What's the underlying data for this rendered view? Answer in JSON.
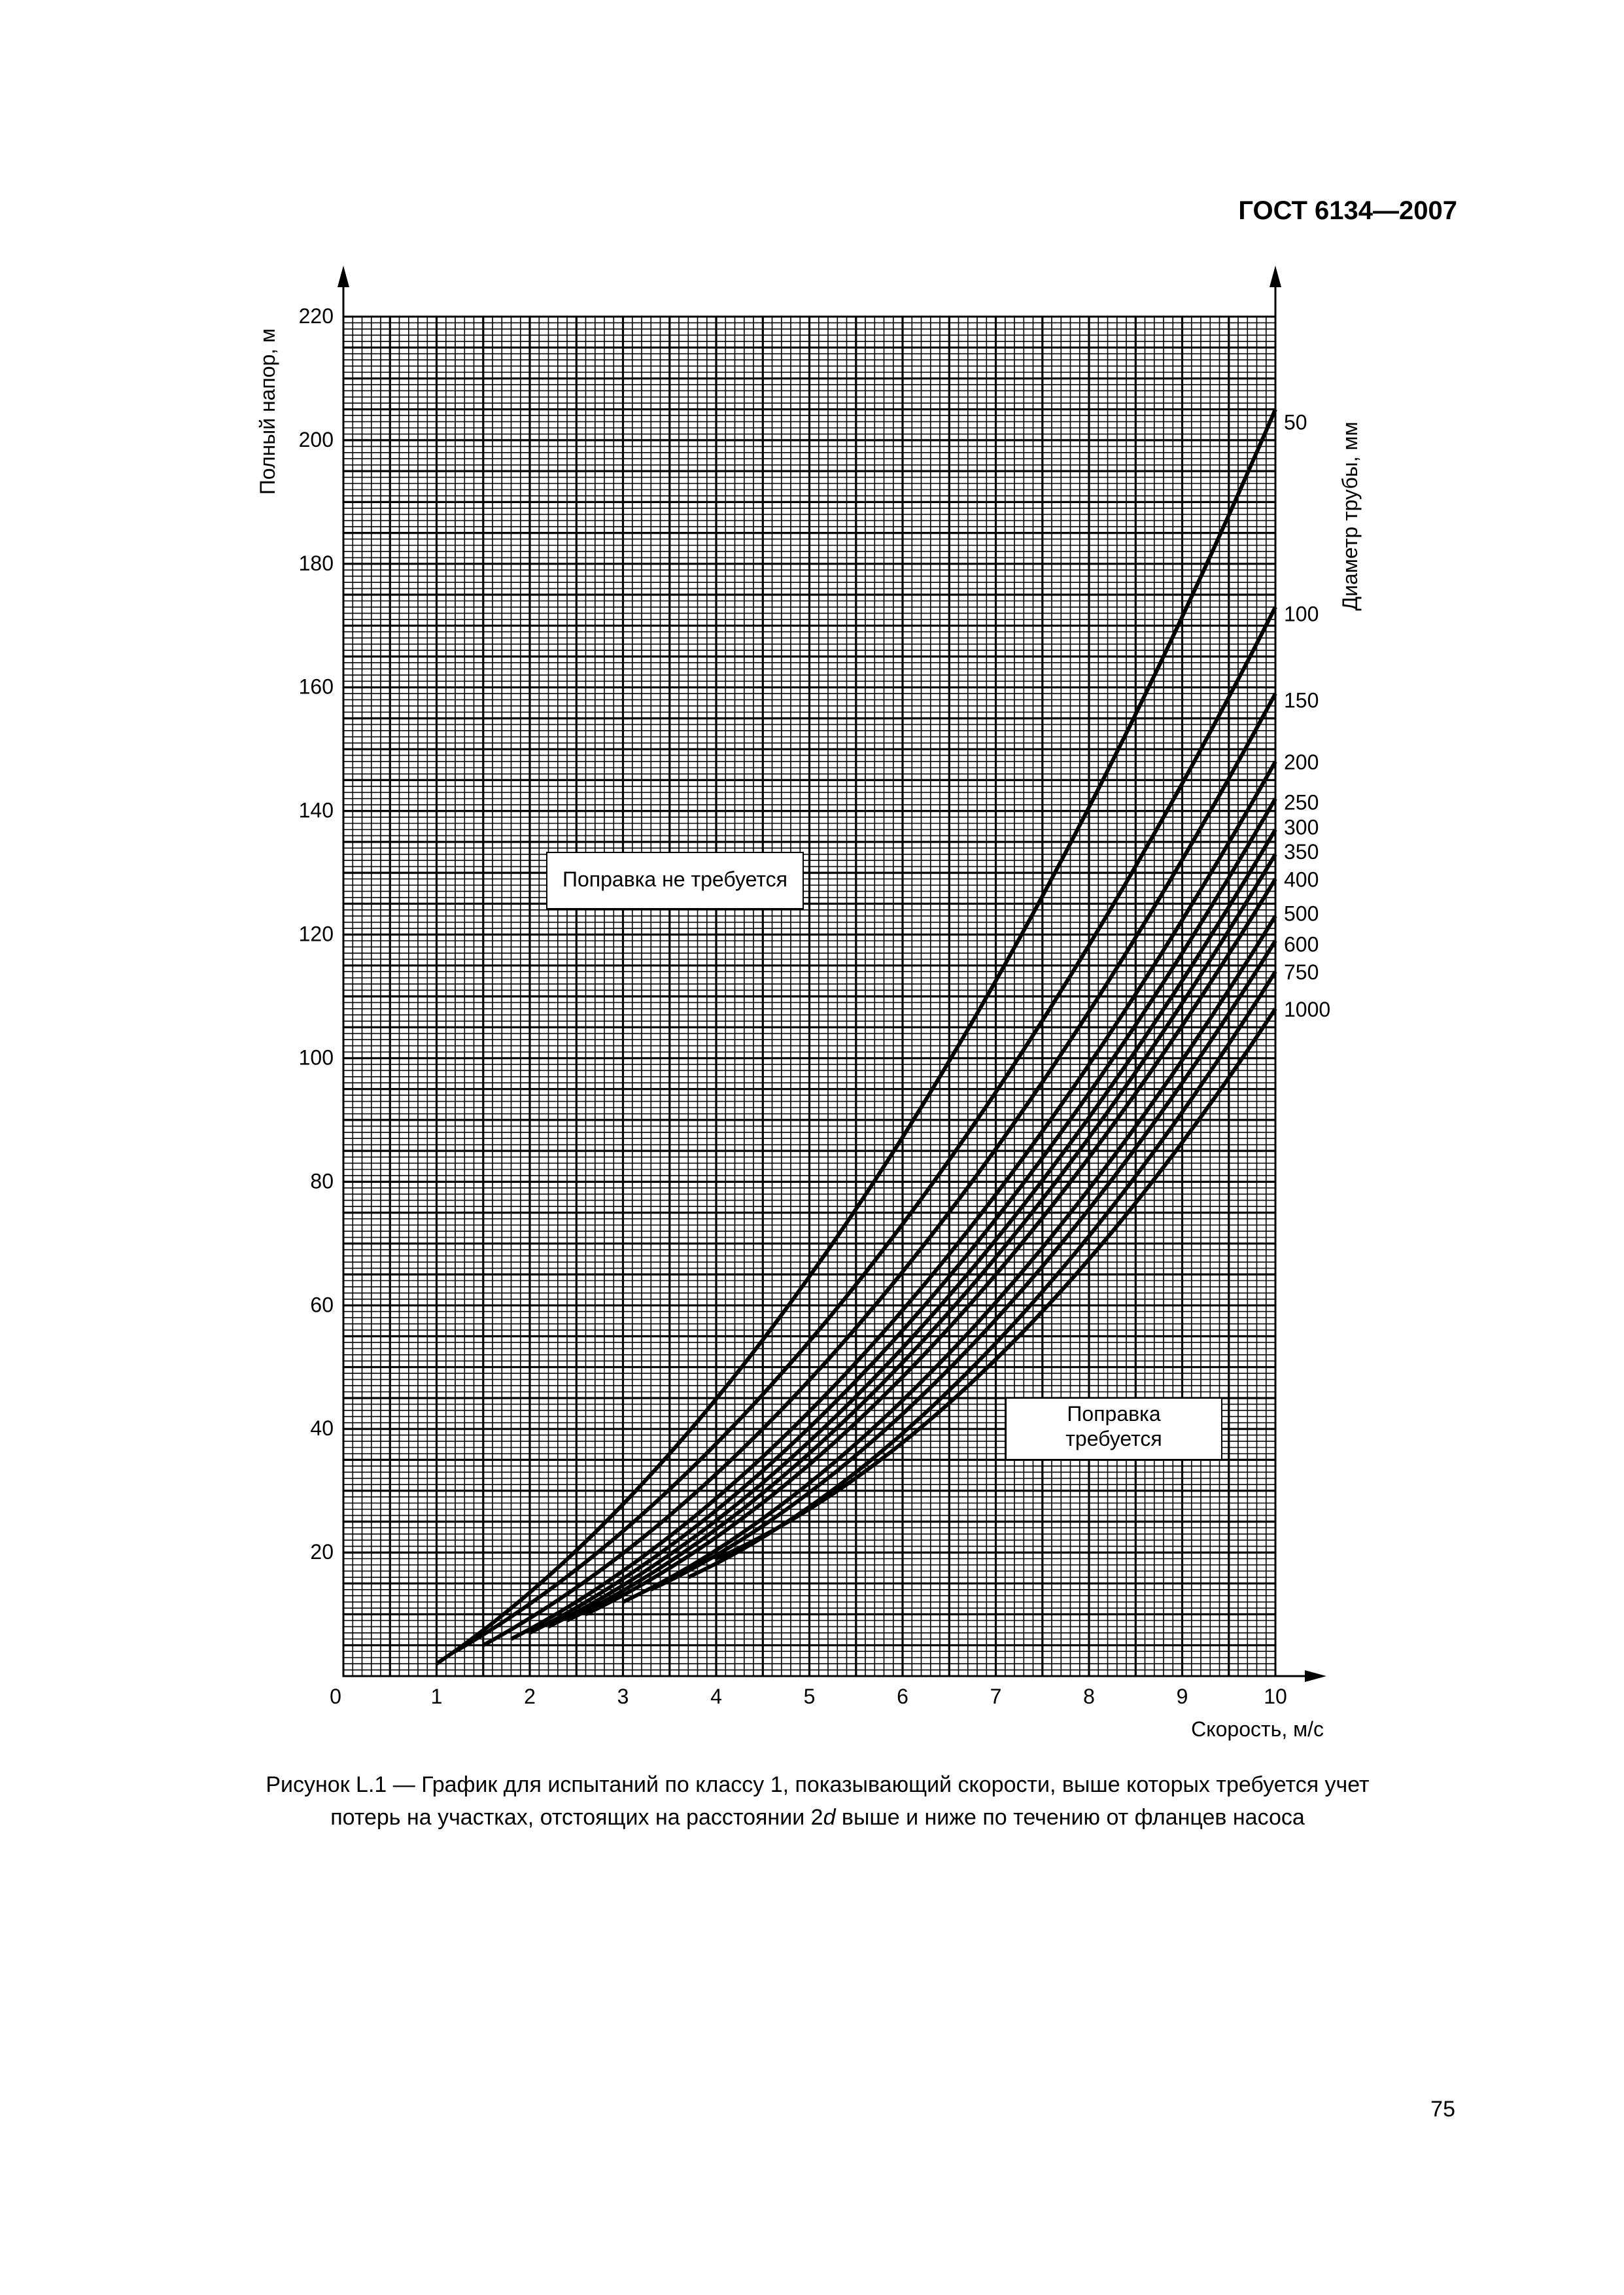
{
  "header": {
    "standard": "ГОСТ 6134—2007"
  },
  "page_number": "75",
  "caption": {
    "line1": "Рисунок L.1 — График для испытаний по  классу 1, показывающий скорости, выше которых требуется учет",
    "line2_before": "потерь на участках, отстоящих на расстоянии 2",
    "line2_italic": "d",
    "line2_after": " выше и ниже по течению от фланцев насоса"
  },
  "chart_data": {
    "type": "line",
    "xlabel": "Скорость, м/с",
    "ylabel": "Полный напор, м",
    "y2label": "Диаметр трубы, мм",
    "xlim": [
      0,
      10
    ],
    "ylim": [
      0,
      220
    ],
    "x_ticks": [
      "0",
      "1",
      "2",
      "3",
      "4",
      "5",
      "6",
      "7",
      "8",
      "9",
      "10"
    ],
    "y_ticks": [
      "20",
      "40",
      "60",
      "80",
      "100",
      "120",
      "140",
      "160",
      "180",
      "200",
      "220"
    ],
    "grid": true,
    "regions": [
      {
        "label": "Поправка не требуется"
      },
      {
        "label_line1": "Поправка",
        "label_line2": "требуется"
      }
    ],
    "series": [
      {
        "name": "50",
        "x_start": 1.0,
        "x_end": 10,
        "y_end": 205,
        "x_label_end": 205
      },
      {
        "name": "100",
        "x_start": 1.2,
        "x_end": 10,
        "y_end": 173
      },
      {
        "name": "150",
        "x_start": 1.5,
        "x_end": 10,
        "y_end": 159
      },
      {
        "name": "200",
        "x_start": 1.8,
        "x_end": 10,
        "y_end": 148
      },
      {
        "name": "250",
        "x_start": 2.0,
        "x_end": 10,
        "y_end": 142
      },
      {
        "name": "300",
        "x_start": 2.2,
        "x_end": 10,
        "y_end": 137
      },
      {
        "name": "350",
        "x_start": 2.4,
        "x_end": 10,
        "y_end": 133
      },
      {
        "name": "400",
        "x_start": 2.6,
        "x_end": 10,
        "y_end": 129
      },
      {
        "name": "500",
        "x_start": 3.0,
        "x_end": 10,
        "y_end": 123
      },
      {
        "name": "600",
        "x_start": 3.3,
        "x_end": 10,
        "y_end": 119
      },
      {
        "name": "750",
        "x_start": 3.7,
        "x_end": 10,
        "y_end": 114
      },
      {
        "name": "1000",
        "x_start": 4.0,
        "x_end": 10,
        "y_end": 108
      }
    ],
    "curve_start_y": {
      "50": 2,
      "100": 4,
      "150": 5,
      "200": 6,
      "250": 7,
      "300": 8,
      "350": 9,
      "400": 10,
      "500": 12,
      "600": 14,
      "750": 16,
      "1000": 19
    }
  }
}
